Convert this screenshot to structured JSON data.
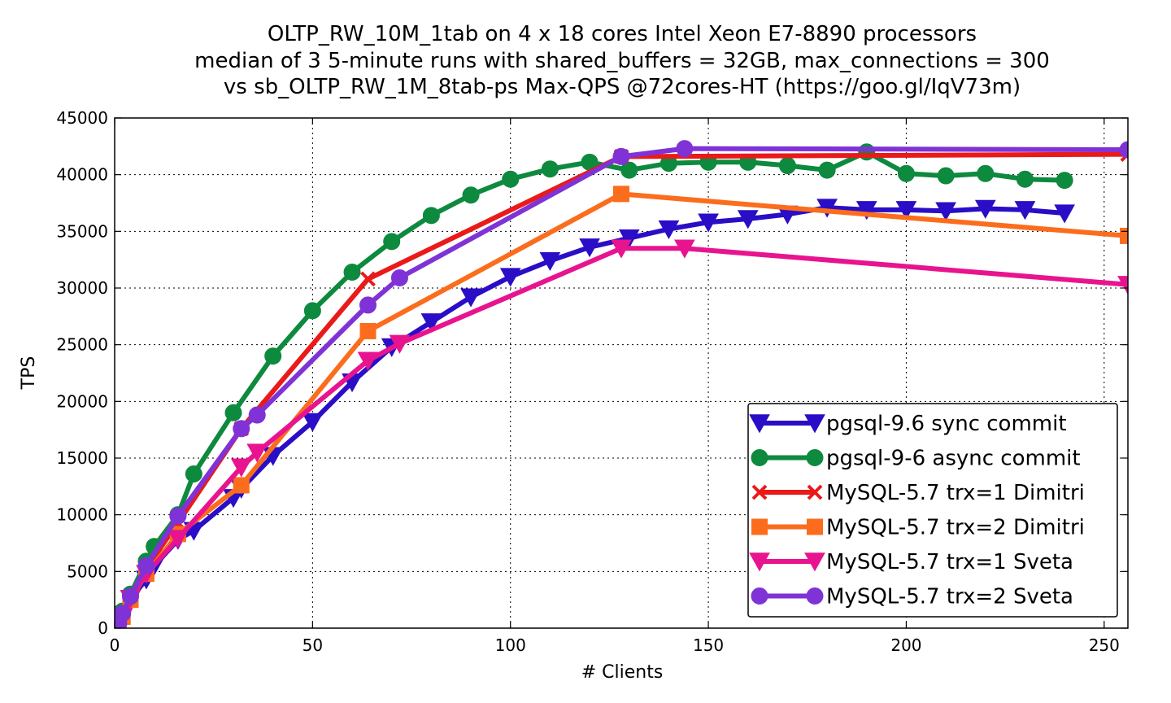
{
  "chart_data": {
    "type": "line",
    "title_lines": [
      "OLTP_RW_10M_1tab on 4 x 18 cores Intel Xeon E7-8890 processors",
      "median of 3 5-minute runs with shared_buffers = 32GB, max_connections = 300",
      "vs sb_OLTP_RW_1M_8tab-ps Max-QPS @72cores-HT (https://goo.gl/IqV73m)"
    ],
    "xlabel": "# Clients",
    "ylabel": "TPS",
    "xlim": [
      0,
      256
    ],
    "ylim": [
      0,
      45000
    ],
    "xticks": [
      0,
      50,
      100,
      150,
      200,
      250
    ],
    "yticks": [
      0,
      5000,
      10000,
      15000,
      20000,
      25000,
      30000,
      35000,
      40000,
      45000
    ],
    "grid": true,
    "legend_position": "lower-right",
    "series": [
      {
        "name": "pgsql-9.6 sync commit",
        "color": "#2a0dc6",
        "marker": "triangle-down",
        "points": [
          [
            1,
            400
          ],
          [
            2,
            1200
          ],
          [
            4,
            2600
          ],
          [
            8,
            4300
          ],
          [
            10,
            5500
          ],
          [
            16,
            7800
          ],
          [
            20,
            8600
          ],
          [
            30,
            11500
          ],
          [
            32,
            12300
          ],
          [
            40,
            15200
          ],
          [
            50,
            18200
          ],
          [
            60,
            21700
          ],
          [
            70,
            24800
          ],
          [
            80,
            27000
          ],
          [
            90,
            29200
          ],
          [
            100,
            31000
          ],
          [
            110,
            32400
          ],
          [
            120,
            33600
          ],
          [
            130,
            34400
          ],
          [
            140,
            35200
          ],
          [
            150,
            35800
          ],
          [
            160,
            36100
          ],
          [
            170,
            36500
          ],
          [
            180,
            37100
          ],
          [
            190,
            36900
          ],
          [
            200,
            36900
          ],
          [
            210,
            36800
          ],
          [
            220,
            37000
          ],
          [
            230,
            36900
          ],
          [
            240,
            36600
          ]
        ]
      },
      {
        "name": "pgsql-9-6 async commit",
        "color": "#0d8a3e",
        "marker": "circle",
        "points": [
          [
            1,
            500
          ],
          [
            2,
            1500
          ],
          [
            4,
            3000
          ],
          [
            8,
            5900
          ],
          [
            10,
            7200
          ],
          [
            16,
            10000
          ],
          [
            20,
            13600
          ],
          [
            30,
            19000
          ],
          [
            40,
            24000
          ],
          [
            50,
            28000
          ],
          [
            60,
            31400
          ],
          [
            70,
            34100
          ],
          [
            80,
            36400
          ],
          [
            90,
            38200
          ],
          [
            100,
            39600
          ],
          [
            110,
            40500
          ],
          [
            120,
            41100
          ],
          [
            130,
            40400
          ],
          [
            140,
            41000
          ],
          [
            150,
            41100
          ],
          [
            160,
            41100
          ],
          [
            170,
            40800
          ],
          [
            180,
            40400
          ],
          [
            190,
            42000
          ],
          [
            200,
            40100
          ],
          [
            210,
            39900
          ],
          [
            220,
            40100
          ],
          [
            230,
            39600
          ],
          [
            240,
            39500
          ]
        ]
      },
      {
        "name": "MySQL-5.7 trx=1 Dimitri",
        "color": "#ea1a1a",
        "marker": "x",
        "points": [
          [
            1,
            300
          ],
          [
            2,
            1000
          ],
          [
            4,
            2700
          ],
          [
            8,
            5300
          ],
          [
            16,
            9300
          ],
          [
            32,
            17600
          ],
          [
            64,
            30800
          ],
          [
            128,
            41600
          ],
          [
            256,
            41800
          ]
        ]
      },
      {
        "name": "MySQL-5.7 trx=2 Dimitri",
        "color": "#fb6d1d",
        "marker": "square",
        "points": [
          [
            1,
            300
          ],
          [
            2,
            1000
          ],
          [
            4,
            2500
          ],
          [
            8,
            4800
          ],
          [
            16,
            8300
          ],
          [
            32,
            12600
          ],
          [
            64,
            26200
          ],
          [
            128,
            38300
          ],
          [
            256,
            34600
          ]
        ]
      },
      {
        "name": "MySQL-5.7 trx=1 Sveta",
        "color": "#e8148f",
        "marker": "triangle-down",
        "points": [
          [
            1,
            300
          ],
          [
            2,
            1000
          ],
          [
            4,
            2600
          ],
          [
            8,
            4800
          ],
          [
            16,
            7900
          ],
          [
            32,
            14200
          ],
          [
            36,
            15500
          ],
          [
            64,
            23600
          ],
          [
            72,
            25100
          ],
          [
            128,
            33500
          ],
          [
            144,
            33500
          ],
          [
            256,
            30300
          ]
        ]
      },
      {
        "name": "MySQL-5.7 trx=2 Sveta",
        "color": "#7f33d6",
        "marker": "circle",
        "points": [
          [
            1,
            400
          ],
          [
            2,
            1300
          ],
          [
            4,
            2800
          ],
          [
            8,
            5500
          ],
          [
            16,
            9900
          ],
          [
            32,
            17600
          ],
          [
            36,
            18800
          ],
          [
            64,
            28500
          ],
          [
            72,
            30900
          ],
          [
            128,
            41600
          ],
          [
            144,
            42300
          ],
          [
            256,
            42200
          ]
        ]
      }
    ]
  }
}
